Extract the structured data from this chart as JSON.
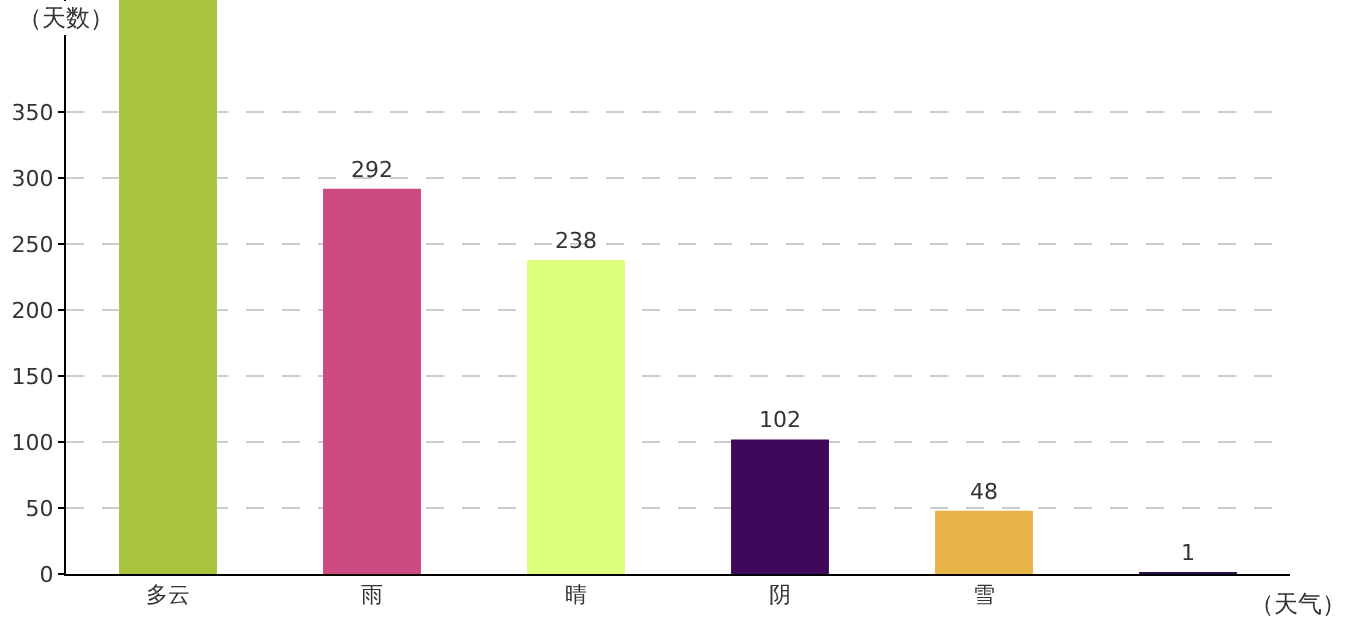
{
  "chart_data": {
    "type": "bar",
    "xlabel": "（天气）",
    "ylabel": "（天数）",
    "categories": [
      "多云",
      "雨",
      "晴",
      "阴",
      "雪",
      null
    ],
    "values": [
      435,
      292,
      238,
      102,
      48,
      1
    ],
    "value_labels": [
      null,
      "292",
      "238",
      "102",
      "48",
      "1"
    ],
    "colors": [
      "#a8c43c",
      "#cc4a80",
      "#dcff7c",
      "#40085a",
      "#e6b446",
      "#2a1050"
    ],
    "ylim": [
      0,
      435
    ],
    "yticks": [
      0,
      50,
      100,
      150,
      200,
      250,
      300,
      350
    ],
    "grid": "y",
    "legend": false
  }
}
